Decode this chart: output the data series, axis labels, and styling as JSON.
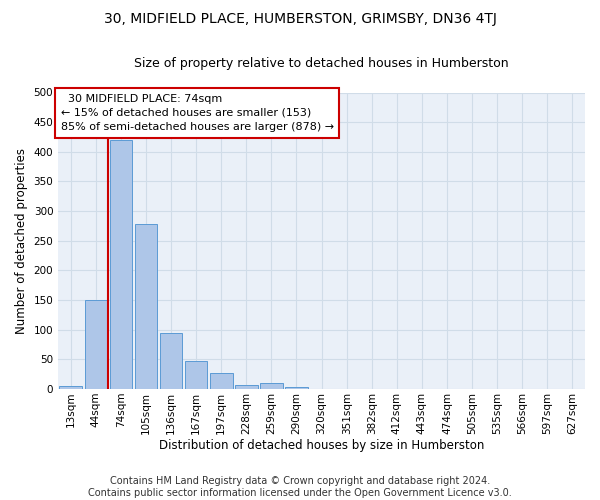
{
  "title": "30, MIDFIELD PLACE, HUMBERSTON, GRIMSBY, DN36 4TJ",
  "subtitle": "Size of property relative to detached houses in Humberston",
  "xlabel": "Distribution of detached houses by size in Humberston",
  "ylabel": "Number of detached properties",
  "footer_line1": "Contains HM Land Registry data © Crown copyright and database right 2024.",
  "footer_line2": "Contains public sector information licensed under the Open Government Licence v3.0.",
  "annotation_line1": "  30 MIDFIELD PLACE: 74sqm",
  "annotation_line2": "← 15% of detached houses are smaller (153)",
  "annotation_line3": "85% of semi-detached houses are larger (878) →",
  "bar_values": [
    5,
    150,
    420,
    278,
    95,
    48,
    27,
    7,
    10,
    4,
    0,
    0,
    0,
    0,
    0,
    0,
    0,
    0,
    0,
    0,
    0
  ],
  "bin_labels": [
    "13sqm",
    "44sqm",
    "74sqm",
    "105sqm",
    "136sqm",
    "167sqm",
    "197sqm",
    "228sqm",
    "259sqm",
    "290sqm",
    "320sqm",
    "351sqm",
    "382sqm",
    "412sqm",
    "443sqm",
    "474sqm",
    "505sqm",
    "535sqm",
    "566sqm",
    "597sqm",
    "627sqm"
  ],
  "bar_color": "#aec6e8",
  "bar_edge_color": "#5b9bd5",
  "red_line_x": 1.5,
  "red_line_color": "#cc0000",
  "annotation_box_color": "#cc0000",
  "ylim": [
    0,
    500
  ],
  "yticks": [
    0,
    50,
    100,
    150,
    200,
    250,
    300,
    350,
    400,
    450,
    500
  ],
  "grid_color": "#d0dce8",
  "bg_color": "#eaf0f8",
  "title_fontsize": 10,
  "subtitle_fontsize": 9,
  "axis_label_fontsize": 8.5,
  "tick_fontsize": 7.5,
  "annotation_fontsize": 8,
  "footer_fontsize": 7
}
